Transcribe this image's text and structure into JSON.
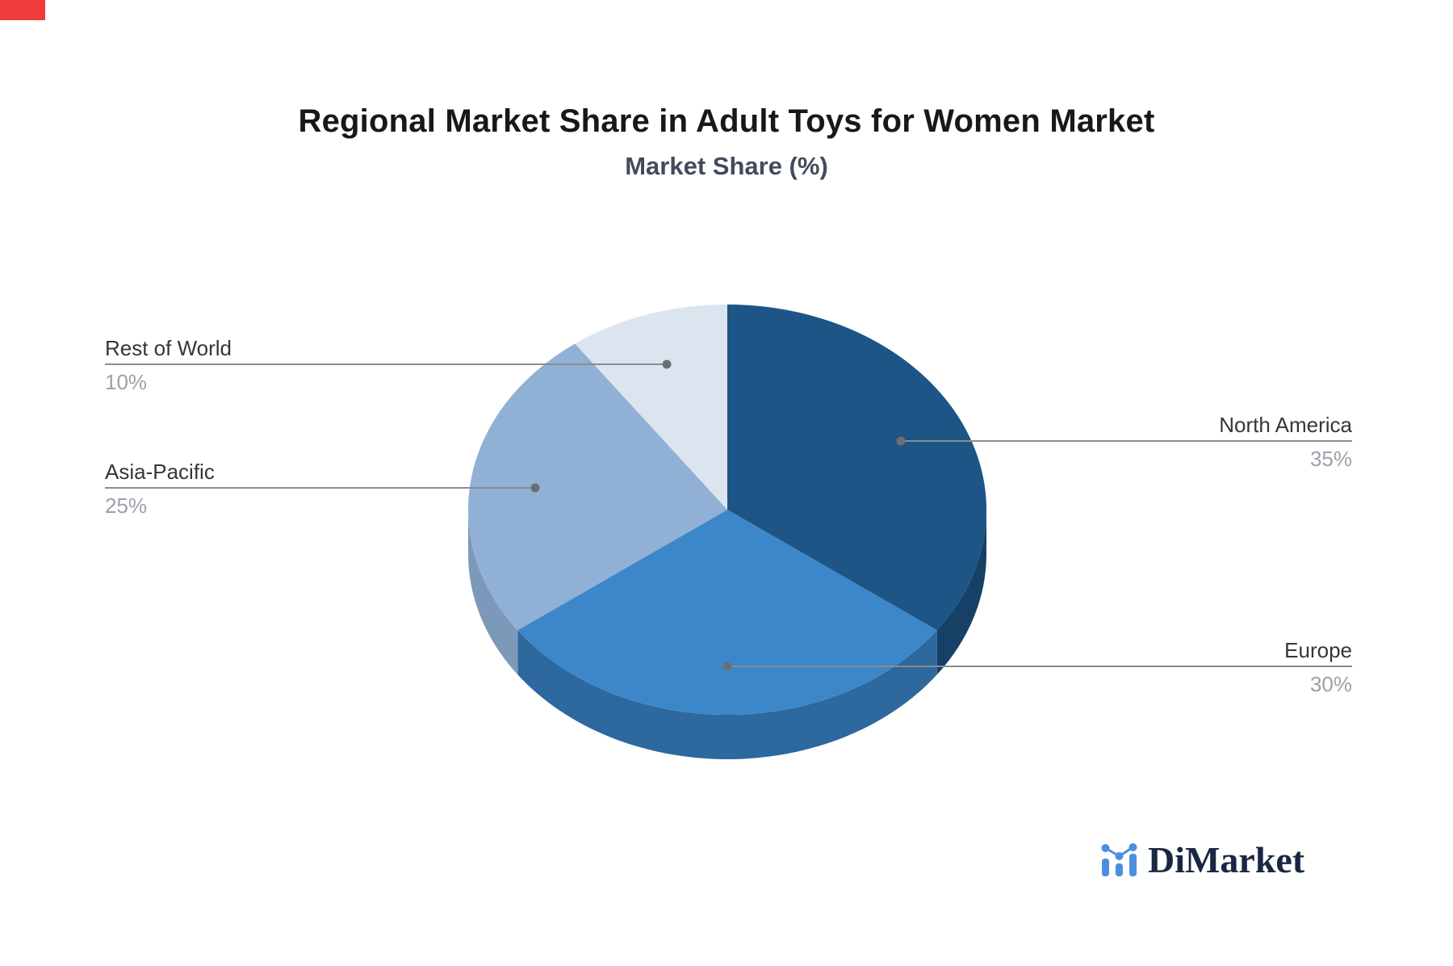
{
  "title": "Regional Market Share in Adult Toys for Women Market",
  "subtitle": "Market Share (%)",
  "brand": {
    "name": "DiMarket",
    "icon": "bar-chart-trend-icon"
  },
  "colors": {
    "title_text": "#181818",
    "subtitle_text": "#404c5e",
    "label_text": "#33373b",
    "percent_text": "#9ba1a8",
    "leader_line": "#898d91",
    "leader_dot": "#6b6f73",
    "brand_icon_blue": "#4a90e2",
    "brand_text_navy": "#1a2742",
    "corner_marker_red": "#ef3b39"
  },
  "chart_data": {
    "type": "pie",
    "style": "3d",
    "title": "Regional Market Share in Adult Toys for Women Market",
    "subtitle": "Market Share (%)",
    "unit": "%",
    "start_angle_deg": 90,
    "direction": "clockwise",
    "legend_position": "leader-lines",
    "labels": [
      "North America",
      "Europe",
      "Asia-Pacific",
      "Rest of World"
    ],
    "values": [
      35,
      30,
      25,
      10
    ],
    "display_values": [
      "35%",
      "30%",
      "25%",
      "10%"
    ],
    "slice_colors": [
      "#1c5586",
      "#3c87c9",
      "#91b0d5",
      "#dce4ef"
    ],
    "slice_side_colors": [
      "#164066",
      "#2d689e",
      "#7d99ba",
      "#c3cedd"
    ]
  }
}
